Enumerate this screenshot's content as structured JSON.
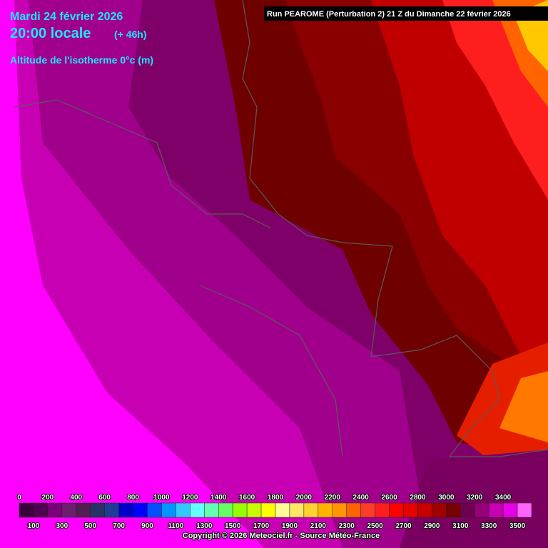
{
  "header": {
    "date": "Mardi 24 février 2026",
    "time": "20:00 locale",
    "lead": "(+ 46h)",
    "field": "Altitude de l'isotherme 0°c (m)",
    "run": "Run PEAROME (Perturbation 2) 21 Z du Dimanche 22 février 2026"
  },
  "legend": {
    "labels": [
      0,
      100,
      200,
      300,
      400,
      500,
      600,
      700,
      800,
      900,
      1000,
      1100,
      1200,
      1300,
      1400,
      1500,
      1600,
      1700,
      1800,
      1900,
      2000,
      2100,
      2200,
      2300,
      2400,
      2500,
      2600,
      2700,
      2800,
      2900,
      3000,
      3100,
      3200,
      3300,
      3400,
      3500
    ],
    "colors": [
      "#3c003c",
      "#500050",
      "#780078",
      "#6e1e6e",
      "#501e50",
      "#283264",
      "#1e3c96",
      "#0000c8",
      "#0000ff",
      "#0050ff",
      "#0096ff",
      "#32c8ff",
      "#64ffff",
      "#64ffb4",
      "#64ff64",
      "#96ff00",
      "#c8ff00",
      "#ffff00",
      "#ffff96",
      "#ffe664",
      "#ffd232",
      "#ffb400",
      "#ff9600",
      "#ff6400",
      "#ff3c28",
      "#ff1e1e",
      "#ff0000",
      "#e60000",
      "#c80000",
      "#a00000",
      "#780000",
      "#6e0050",
      "#960078",
      "#c800b4",
      "#e600e6",
      "#ff64ff"
    ]
  },
  "footer": {
    "copyright": "Copyright © 2026 Meteociel.fr - Source Météo-France"
  }
}
